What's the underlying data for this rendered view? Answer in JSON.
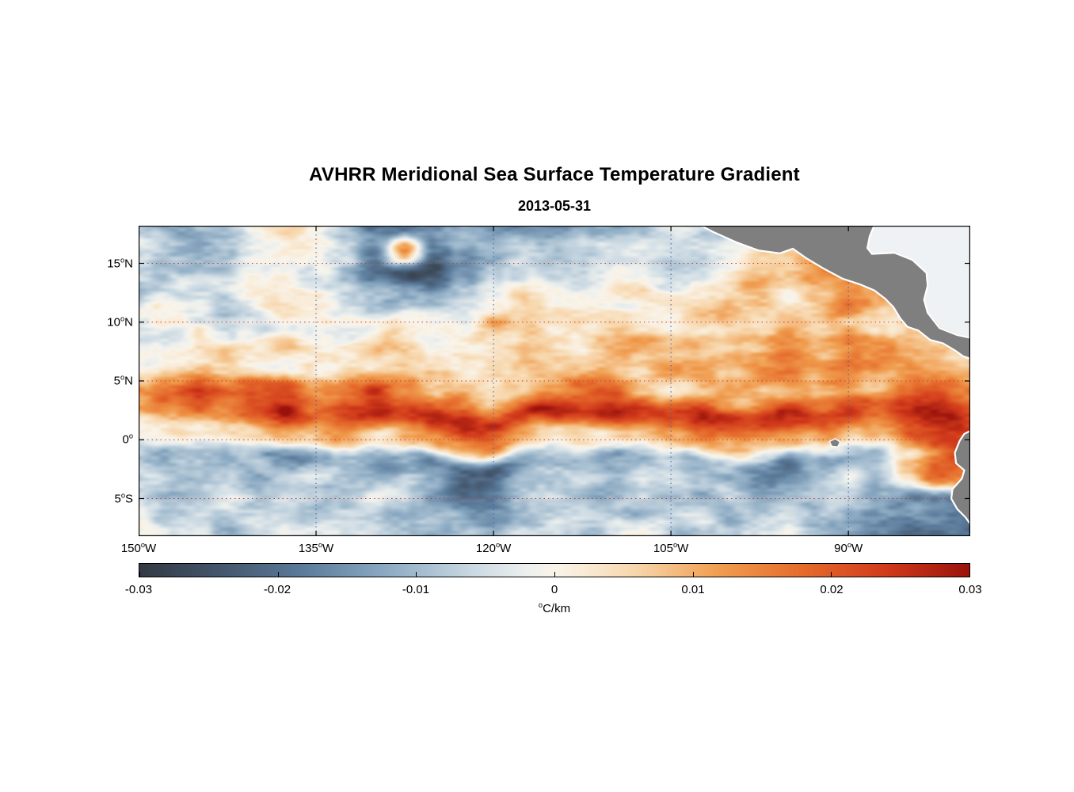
{
  "chart_data": {
    "type": "heatmap",
    "title": "AVHRR Meridional Sea Surface Temperature Gradient",
    "subtitle": "2013-05-31",
    "xlabel": "",
    "ylabel": "",
    "lon_range": [
      -150,
      -79.7
    ],
    "lat_range": [
      -8.2,
      18.2
    ],
    "x_ticks": [
      {
        "num": "150",
        "deg": "o",
        "suf": "W",
        "lon": -150
      },
      {
        "num": "135",
        "deg": "o",
        "suf": "W",
        "lon": -135
      },
      {
        "num": "120",
        "deg": "o",
        "suf": "W",
        "lon": -120
      },
      {
        "num": "105",
        "deg": "o",
        "suf": "W",
        "lon": -105
      },
      {
        "num": "90",
        "deg": "o",
        "suf": "W",
        "lon": -90
      }
    ],
    "y_ticks": [
      {
        "num": "15",
        "deg": "o",
        "suf": "N",
        "lat": 15
      },
      {
        "num": "10",
        "deg": "o",
        "suf": "N",
        "lat": 10
      },
      {
        "num": "5",
        "deg": "o",
        "suf": "N",
        "lat": 5
      },
      {
        "num": "0",
        "deg": "o",
        "suf": "",
        "lat": 0
      },
      {
        "num": "5",
        "deg": "o",
        "suf": "S",
        "lat": -5
      }
    ],
    "grid": {
      "lat_lines": [
        15,
        10,
        5,
        0,
        -5
      ],
      "lon_lines": [
        -135,
        -120,
        -105,
        -90
      ],
      "lat_color": "#c8402a",
      "lon_color": "#3c5fa8"
    },
    "colorbar": {
      "min": -0.03,
      "max": 0.03,
      "tick_labels": [
        "-0.03",
        "-0.02",
        "-0.01",
        "0",
        "0.01",
        "0.02",
        "0.03"
      ],
      "unit": {
        "sup": "o",
        "text": "C/km"
      }
    },
    "colormap": [
      [
        -0.03,
        "#333a43"
      ],
      [
        -0.024,
        "#44576d"
      ],
      [
        -0.018,
        "#5c7c9c"
      ],
      [
        -0.012,
        "#8dabc3"
      ],
      [
        -0.006,
        "#c9d8e2"
      ],
      [
        -0.002,
        "#edf0ee"
      ],
      [
        0.0,
        "#f9f4ea"
      ],
      [
        0.002,
        "#f9ecd9"
      ],
      [
        0.006,
        "#f7d5a9"
      ],
      [
        0.012,
        "#f09c4e"
      ],
      [
        0.018,
        "#e56a2b"
      ],
      [
        0.024,
        "#d13a1b"
      ],
      [
        0.03,
        "#9a120d"
      ]
    ],
    "field": {
      "units": "degC/km",
      "scale": 0.001,
      "lons": [
        -150,
        -147.5,
        -145,
        -142.5,
        -140,
        -137.5,
        -135,
        -132.5,
        -130,
        -127.5,
        -125,
        -122.5,
        -120,
        -117.5,
        -115,
        -112.5,
        -110,
        -107.5,
        -105,
        -102.5,
        -100,
        -97.5,
        -95,
        -92.5,
        -90,
        -87.5,
        -85,
        -82.5,
        -80
      ],
      "lats": [
        18,
        16,
        14,
        12,
        10,
        8,
        6,
        4,
        2,
        0,
        -2,
        -4,
        -6,
        -8
      ],
      "values": [
        [
          -6,
          -10,
          -8,
          -4,
          2,
          4,
          0,
          -8,
          -16,
          -20,
          -18,
          -14,
          -16,
          -14,
          -12,
          -10,
          -12,
          -10,
          -8,
          null,
          null,
          null,
          null,
          null,
          null,
          null,
          null,
          null,
          null
        ],
        [
          -4,
          -8,
          -10,
          -6,
          0,
          2,
          -2,
          -8,
          -18,
          12,
          -22,
          -16,
          -10,
          -8,
          -12,
          -10,
          -6,
          -4,
          -6,
          -8,
          -4,
          2,
          6,
          null,
          null,
          null,
          null,
          null,
          null
        ],
        [
          -2,
          -6,
          -8,
          -10,
          -4,
          0,
          -4,
          -10,
          -18,
          -24,
          -22,
          -12,
          -6,
          -4,
          -8,
          -6,
          -2,
          0,
          -4,
          -2,
          6,
          10,
          8,
          12,
          14,
          null,
          null,
          null,
          null
        ],
        [
          -6,
          -4,
          -2,
          -6,
          -2,
          2,
          0,
          -4,
          -8,
          -10,
          -6,
          -2,
          0,
          2,
          -2,
          0,
          2,
          4,
          0,
          2,
          4,
          8,
          2,
          8,
          16,
          12,
          null,
          null,
          null
        ],
        [
          -4,
          0,
          -4,
          -8,
          -4,
          0,
          2,
          0,
          -2,
          2,
          4,
          2,
          14,
          4,
          0,
          2,
          4,
          2,
          0,
          4,
          8,
          6,
          10,
          6,
          10,
          8,
          6,
          null,
          null
        ],
        [
          -2,
          -4,
          0,
          -2,
          0,
          4,
          2,
          0,
          4,
          2,
          0,
          4,
          2,
          6,
          2,
          4,
          6,
          8,
          4,
          6,
          10,
          8,
          12,
          10,
          14,
          10,
          8,
          6,
          null
        ],
        [
          0,
          4,
          2,
          6,
          2,
          0,
          4,
          6,
          2,
          6,
          8,
          4,
          6,
          10,
          6,
          4,
          8,
          6,
          10,
          8,
          6,
          10,
          12,
          8,
          12,
          14,
          10,
          8,
          6
        ],
        [
          8,
          14,
          20,
          12,
          18,
          22,
          16,
          20,
          24,
          14,
          10,
          16,
          8,
          6,
          12,
          18,
          20,
          12,
          8,
          10,
          6,
          8,
          12,
          6,
          10,
          8,
          14,
          18,
          12
        ],
        [
          10,
          16,
          22,
          18,
          24,
          28,
          20,
          24,
          28,
          22,
          26,
          28,
          24,
          26,
          28,
          22,
          26,
          20,
          24,
          28,
          26,
          22,
          26,
          24,
          28,
          22,
          26,
          28,
          24
        ],
        [
          2,
          6,
          4,
          8,
          6,
          10,
          6,
          8,
          4,
          10,
          12,
          8,
          14,
          10,
          6,
          8,
          4,
          6,
          10,
          14,
          10,
          8,
          12,
          8,
          6,
          10,
          16,
          22,
          20
        ],
        [
          -8,
          -12,
          -10,
          -14,
          -10,
          -16,
          -12,
          -10,
          -14,
          -12,
          -18,
          -22,
          -20,
          -16,
          -12,
          -10,
          -14,
          -12,
          -8,
          -12,
          -10,
          -14,
          -16,
          -12,
          -10,
          -8,
          6,
          18,
          22
        ],
        [
          -6,
          -10,
          -8,
          -6,
          -12,
          -8,
          -6,
          -10,
          -8,
          -6,
          -12,
          -16,
          -14,
          -10,
          -8,
          -6,
          -10,
          -8,
          -6,
          -10,
          -8,
          -12,
          -10,
          -8,
          -6,
          -10,
          4,
          16,
          null
        ],
        [
          -4,
          -8,
          -6,
          -4,
          -8,
          -6,
          -10,
          -6,
          -4,
          -8,
          -10,
          -8,
          -12,
          -8,
          -6,
          -10,
          -8,
          -6,
          -10,
          -8,
          -12,
          -8,
          -6,
          -10,
          -8,
          -12,
          -16,
          null,
          null
        ],
        [
          -2,
          -6,
          -4,
          -8,
          -4,
          -2,
          -6,
          -8,
          -4,
          -6,
          -8,
          -6,
          -10,
          -6,
          -4,
          -8,
          -6,
          -4,
          -8,
          -6,
          -10,
          -6,
          -4,
          -8,
          -12,
          -16,
          -20,
          null,
          null
        ]
      ]
    },
    "land": {
      "fill": "#7f7f7f",
      "outline": "#ffffff",
      "sea_mask_fill": "#eef2f4",
      "polygons": {
        "caribbean_sea": [
          [
            -88.6,
            18.6
          ],
          [
            -88.6,
            16.2
          ],
          [
            -88.2,
            15.85
          ],
          [
            -86,
            15.95
          ],
          [
            -84.6,
            15.35
          ],
          [
            -83.35,
            14.2
          ],
          [
            -83.25,
            13.1
          ],
          [
            -83.55,
            11.9
          ],
          [
            -83.25,
            10.8
          ],
          [
            -82.2,
            9.55
          ],
          [
            -80.7,
            8.95
          ],
          [
            -79.2,
            8.65
          ],
          [
            -79.2,
            18.6
          ]
        ],
        "central_america": [
          [
            -103,
            18.5
          ],
          [
            -101.5,
            17.7
          ],
          [
            -99.5,
            16.8
          ],
          [
            -97.6,
            16.1
          ],
          [
            -95.8,
            15.85
          ],
          [
            -94.7,
            16.25
          ],
          [
            -93.5,
            15.4
          ],
          [
            -92,
            14.5
          ],
          [
            -90.5,
            13.7
          ],
          [
            -89,
            13.2
          ],
          [
            -87.8,
            12.7
          ],
          [
            -86.9,
            12.0
          ],
          [
            -86.2,
            11.3
          ],
          [
            -85.6,
            10.3
          ],
          [
            -85,
            9.6
          ],
          [
            -84.1,
            9.3
          ],
          [
            -83.1,
            8.5
          ],
          [
            -82,
            8.2
          ],
          [
            -81,
            7.6
          ],
          [
            -80.3,
            7.1
          ],
          [
            -79.4,
            6.8
          ],
          [
            -79.4,
            8.6
          ],
          [
            -80.8,
            8.9
          ],
          [
            -82.3,
            9.5
          ],
          [
            -83.3,
            10.8
          ],
          [
            -83.6,
            11.9
          ],
          [
            -83.3,
            13.1
          ],
          [
            -83.4,
            14.2
          ],
          [
            -84.6,
            15.3
          ],
          [
            -86.1,
            15.9
          ],
          [
            -88,
            15.8
          ],
          [
            -88.4,
            16.3
          ],
          [
            -88.2,
            17.3
          ],
          [
            -87.7,
            18.5
          ]
        ],
        "south_america": [
          [
            -79.4,
            0.9
          ],
          [
            -80.2,
            0.5
          ],
          [
            -80.6,
            -0.1
          ],
          [
            -81.0,
            -1.1
          ],
          [
            -80.9,
            -2.0
          ],
          [
            -80.2,
            -2.6
          ],
          [
            -80.4,
            -3.3
          ],
          [
            -81.2,
            -4.2
          ],
          [
            -81.3,
            -5.0
          ],
          [
            -80.8,
            -5.9
          ],
          [
            -80.1,
            -6.6
          ],
          [
            -79.6,
            -7.3
          ],
          [
            -79.4,
            -8.5
          ]
        ],
        "galapagos": [
          [
            -91.6,
            -0.15
          ],
          [
            -91.1,
            0.1
          ],
          [
            -90.7,
            -0.2
          ],
          [
            -90.9,
            -0.6
          ],
          [
            -91.4,
            -0.55
          ]
        ]
      }
    }
  }
}
